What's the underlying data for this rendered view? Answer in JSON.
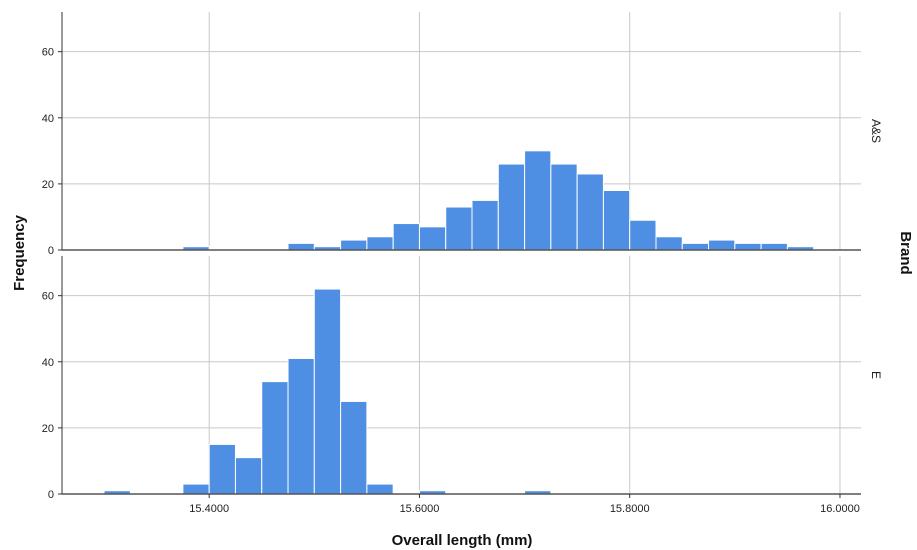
{
  "chart_data": {
    "type": "bar",
    "subtype": "histogram-panels",
    "xlabel": "Overall length (mm)",
    "ylabel": "Frequency",
    "panel_group_label": "Brand",
    "xlim": [
      15.26,
      16.02
    ],
    "ylim": [
      0,
      72
    ],
    "xticks": [
      15.4,
      15.6,
      15.8,
      16.0
    ],
    "xtick_labels": [
      "15.4000",
      "15.6000",
      "15.8000",
      "16.0000"
    ],
    "yticks": [
      0,
      20,
      40,
      60
    ],
    "ytick_labels": [
      "0",
      "20",
      "40",
      "60"
    ],
    "bin_width": 0.025,
    "grid": true,
    "bar_color": "#4f8fe3",
    "bar_edge_color": "#ffffff",
    "grid_color": "#c8c8c8",
    "panels": [
      {
        "name": "A&S",
        "bins": [
          {
            "x": 15.3875,
            "value": 1
          },
          {
            "x": 15.4875,
            "value": 2
          },
          {
            "x": 15.5125,
            "value": 1
          },
          {
            "x": 15.5375,
            "value": 3
          },
          {
            "x": 15.5625,
            "value": 4
          },
          {
            "x": 15.5875,
            "value": 8
          },
          {
            "x": 15.6125,
            "value": 7
          },
          {
            "x": 15.6375,
            "value": 13
          },
          {
            "x": 15.6625,
            "value": 15
          },
          {
            "x": 15.6875,
            "value": 26
          },
          {
            "x": 15.7125,
            "value": 30
          },
          {
            "x": 15.7375,
            "value": 26
          },
          {
            "x": 15.7625,
            "value": 23
          },
          {
            "x": 15.7875,
            "value": 18
          },
          {
            "x": 15.8125,
            "value": 9
          },
          {
            "x": 15.8375,
            "value": 4
          },
          {
            "x": 15.8625,
            "value": 2
          },
          {
            "x": 15.8875,
            "value": 3
          },
          {
            "x": 15.9125,
            "value": 2
          },
          {
            "x": 15.9375,
            "value": 2
          },
          {
            "x": 15.9625,
            "value": 1
          }
        ]
      },
      {
        "name": "E",
        "bins": [
          {
            "x": 15.3125,
            "value": 1
          },
          {
            "x": 15.3875,
            "value": 3
          },
          {
            "x": 15.4125,
            "value": 15
          },
          {
            "x": 15.4375,
            "value": 11
          },
          {
            "x": 15.4625,
            "value": 34
          },
          {
            "x": 15.4875,
            "value": 41
          },
          {
            "x": 15.5125,
            "value": 62
          },
          {
            "x": 15.5375,
            "value": 28
          },
          {
            "x": 15.5625,
            "value": 3
          },
          {
            "x": 15.6125,
            "value": 1
          },
          {
            "x": 15.7125,
            "value": 1
          }
        ]
      }
    ]
  }
}
